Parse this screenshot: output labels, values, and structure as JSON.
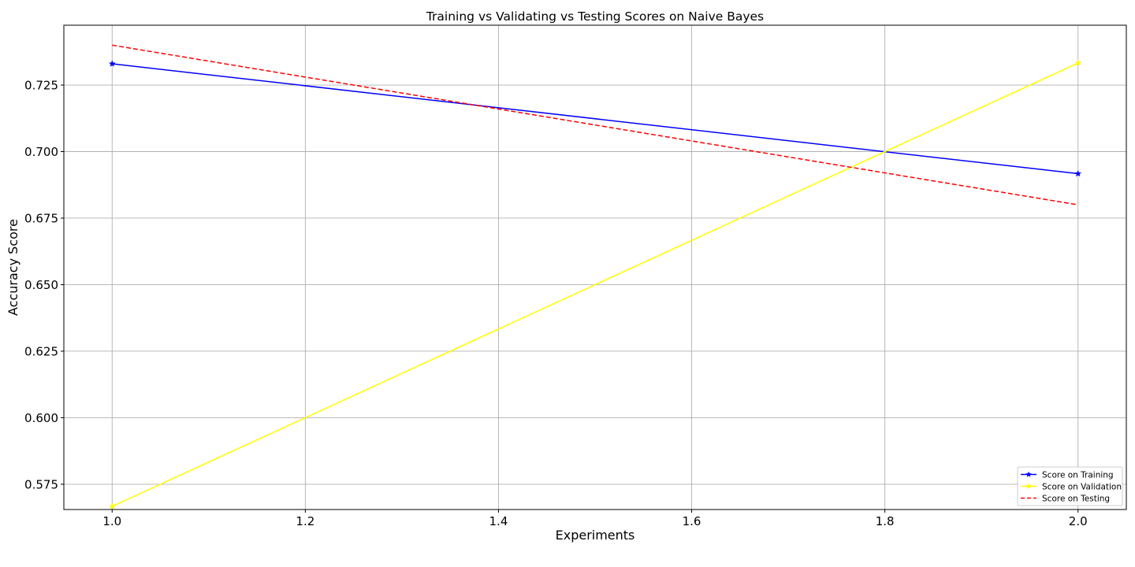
{
  "chart_data": {
    "type": "line",
    "title": "Training vs Validating vs Testing Scores on Naive Bayes",
    "xlabel": "Experiments",
    "ylabel": "Accuracy Score",
    "xlim": [
      0.95,
      2.05
    ],
    "ylim": [
      0.5655,
      0.7475
    ],
    "xticks": [
      1.0,
      1.2,
      1.4,
      1.6,
      1.8,
      2.0
    ],
    "xtick_labels": [
      "1.0",
      "1.2",
      "1.4",
      "1.6",
      "1.8",
      "2.0"
    ],
    "yticks": [
      0.575,
      0.6,
      0.625,
      0.65,
      0.675,
      0.7,
      0.725
    ],
    "ytick_labels": [
      "0.575",
      "0.600",
      "0.625",
      "0.650",
      "0.675",
      "0.700",
      "0.725"
    ],
    "grid": true,
    "legend_position": "bottom-right",
    "series": [
      {
        "name": "Score on Training",
        "x": [
          1,
          2
        ],
        "values": [
          0.733,
          0.6917
        ],
        "color": "#0000ff",
        "linestyle": "solid",
        "marker": "star"
      },
      {
        "name": "Score on Validation",
        "x": [
          1,
          2
        ],
        "values": [
          0.5667,
          0.7333
        ],
        "color": "#ffff00",
        "linestyle": "solid",
        "marker": "star"
      },
      {
        "name": "Score on Testing",
        "x": [
          1,
          2
        ],
        "values": [
          0.74,
          0.68
        ],
        "color": "#ff0000",
        "linestyle": "dashed",
        "marker": "none"
      }
    ]
  }
}
